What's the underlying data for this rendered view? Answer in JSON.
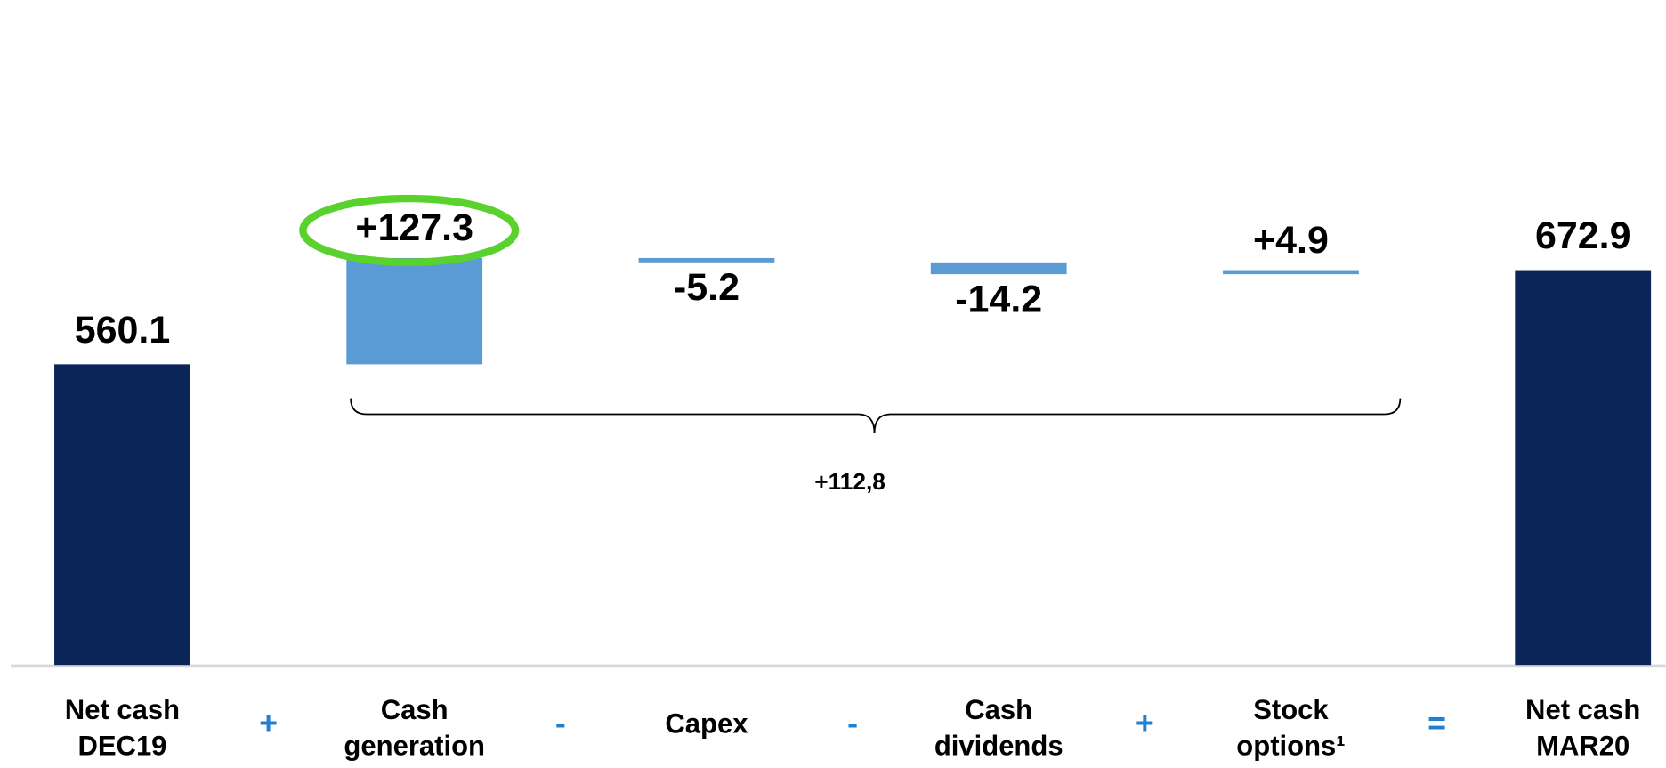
{
  "chart_data": {
    "type": "waterfall",
    "categories": [
      [
        "Net cash",
        "DEC19"
      ],
      [
        "Cash",
        "generation"
      ],
      [
        "Capex"
      ],
      [
        "Cash",
        "dividends"
      ],
      [
        "Stock",
        "options¹"
      ],
      [
        "Net cash",
        "MAR20"
      ]
    ],
    "values": [
      560.1,
      127.3,
      -5.2,
      -14.2,
      4.9,
      672.9
    ],
    "value_labels": [
      "560.1",
      "+127.3",
      "-5.2",
      "-14.2",
      "+4.9",
      "672.9"
    ],
    "measure": [
      "absolute",
      "relative",
      "relative",
      "relative",
      "relative",
      "total"
    ],
    "operators": [
      "+",
      "-",
      "-",
      "+",
      "="
    ],
    "total_color": "#0b2559",
    "color": "#5b9bd5",
    "brace_label": "+112,8",
    "ylim": [
      200,
      700
    ]
  }
}
